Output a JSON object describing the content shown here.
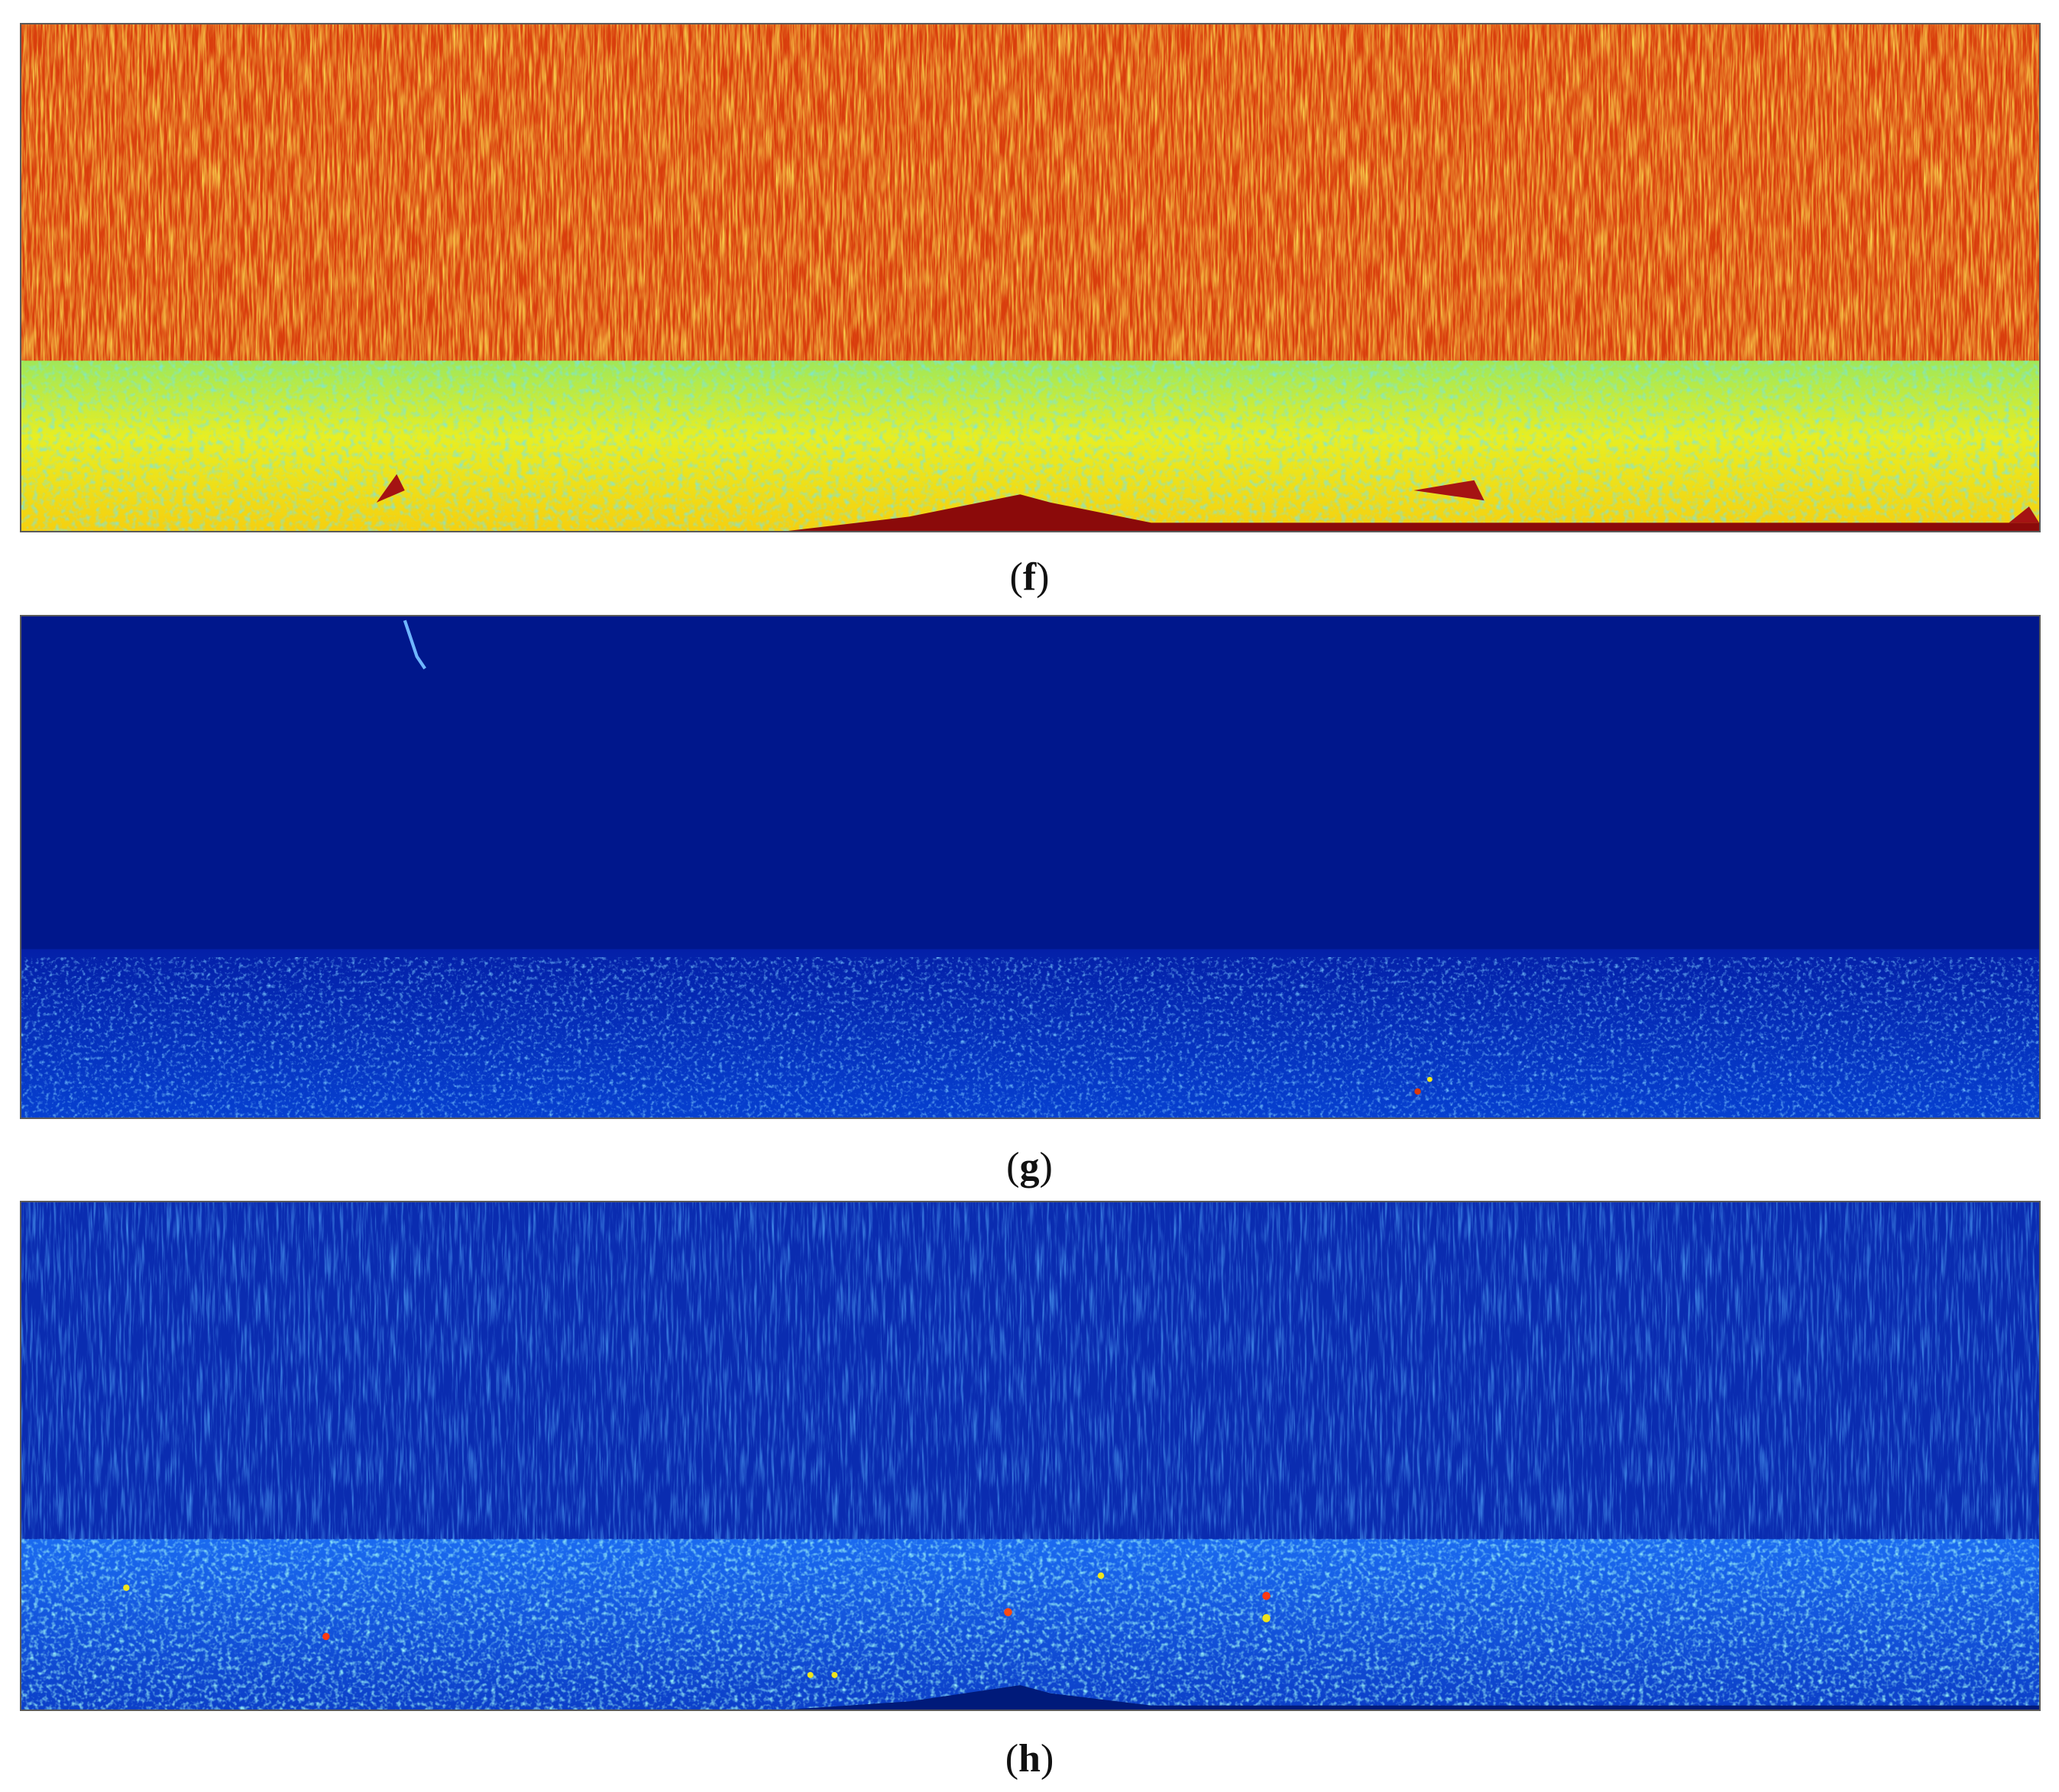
{
  "figure": {
    "panels": [
      {
        "id": "f",
        "caption_letter": "f",
        "colormap_dominant": "#d42a0e",
        "colormap_band": "#f0e51c"
      },
      {
        "id": "g",
        "caption_letter": "g",
        "colormap_dominant": "#001a8f",
        "colormap_band": "#0a4ee0"
      },
      {
        "id": "h",
        "caption_letter": "h",
        "colormap_dominant": "#0a2fb5",
        "colormap_band": "#1e88ff"
      }
    ],
    "colormap": "jet"
  }
}
